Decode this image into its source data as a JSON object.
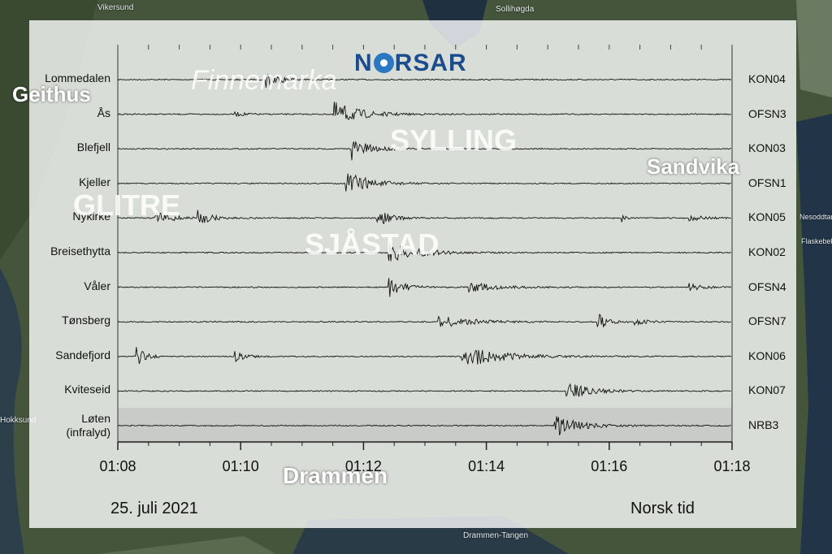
{
  "logo_text": "NORSAR",
  "date_text": "25. juli 2021",
  "timezone_text": "Norsk tid",
  "map_labels": {
    "geithus": "Geithus",
    "finnemarka": "Finnemarka",
    "sylling": "SYLLING",
    "sandvika": "Sandvika",
    "glitre": "GLITRE",
    "sjastad": "SJÅSTAD",
    "drammen": "Drammen",
    "vikersund": "Vikersund",
    "sollihogda": "Sollihøgda",
    "nesodden": "Nesoddtangen",
    "flaskebekk": "Flaskebekk",
    "hokksund": "Hokksund",
    "drammen_tangen": "Drammen-Tangen"
  },
  "chart_data": {
    "type": "line",
    "title": "",
    "xlabel": "",
    "ylabel": "",
    "x_ticks": [
      "01:08",
      "01:10",
      "01:12",
      "01:14",
      "01:16",
      "01:18"
    ],
    "x_range": [
      "01:08",
      "01:18"
    ],
    "series": [
      {
        "name": "Lommedalen",
        "station": "KON04",
        "events": [
          {
            "t": "01:10.4",
            "amp": 0.8,
            "dur": 0.5
          }
        ]
      },
      {
        "name": "Ås",
        "station": "OFSN3",
        "events": [
          {
            "t": "01:09.9",
            "amp": 0.15,
            "dur": 0.5
          },
          {
            "t": "01:11.5",
            "amp": 1.0,
            "dur": 0.9
          }
        ]
      },
      {
        "name": "Blefjell",
        "station": "KON03",
        "events": [
          {
            "t": "01:11.8",
            "amp": 0.9,
            "dur": 0.6
          }
        ]
      },
      {
        "name": "Kjeller",
        "station": "OFSN1",
        "events": [
          {
            "t": "01:11.7",
            "amp": 1.0,
            "dur": 0.8
          }
        ]
      },
      {
        "name": "Nykirke",
        "station": "KON05",
        "events": [
          {
            "t": "01:08.6",
            "amp": 0.5,
            "dur": 0.7
          },
          {
            "t": "01:09.3",
            "amp": 0.6,
            "dur": 0.4
          },
          {
            "t": "01:12.2",
            "amp": 0.7,
            "dur": 0.5
          },
          {
            "t": "01:16.2",
            "amp": 0.5,
            "dur": 0.1
          },
          {
            "t": "01:17.3",
            "amp": 0.25,
            "dur": 0.5
          }
        ]
      },
      {
        "name": "Breisethytta",
        "station": "KON02",
        "events": [
          {
            "t": "01:12.4",
            "amp": 0.8,
            "dur": 1.0
          }
        ]
      },
      {
        "name": "Våler",
        "station": "OFSN4",
        "events": [
          {
            "t": "01:12.4",
            "amp": 0.8,
            "dur": 0.5
          },
          {
            "t": "01:13.7",
            "amp": 0.4,
            "dur": 1.0
          },
          {
            "t": "01:17.3",
            "amp": 0.3,
            "dur": 0.5
          }
        ]
      },
      {
        "name": "Tønsberg",
        "station": "OFSN7",
        "events": [
          {
            "t": "01:13.2",
            "amp": 0.5,
            "dur": 1.2
          },
          {
            "t": "01:15.8",
            "amp": 0.8,
            "dur": 0.3
          },
          {
            "t": "01:16.4",
            "amp": 0.3,
            "dur": 0.4
          }
        ]
      },
      {
        "name": "Sandefjord",
        "station": "KON06",
        "events": [
          {
            "t": "01:08.3",
            "amp": 0.8,
            "dur": 0.3
          },
          {
            "t": "01:09.9",
            "amp": 0.4,
            "dur": 0.4
          },
          {
            "t": "01:13.6",
            "amp": 0.9,
            "dur": 1.3
          }
        ]
      },
      {
        "name": "Kviteseid",
        "station": "KON07",
        "events": [
          {
            "t": "01:15.3",
            "amp": 0.7,
            "dur": 0.8
          }
        ]
      },
      {
        "name": "Løten (infralyd)",
        "station": "NRB3",
        "events": [
          {
            "t": "01:15.1",
            "amp": 0.9,
            "dur": 0.8
          }
        ]
      }
    ]
  }
}
